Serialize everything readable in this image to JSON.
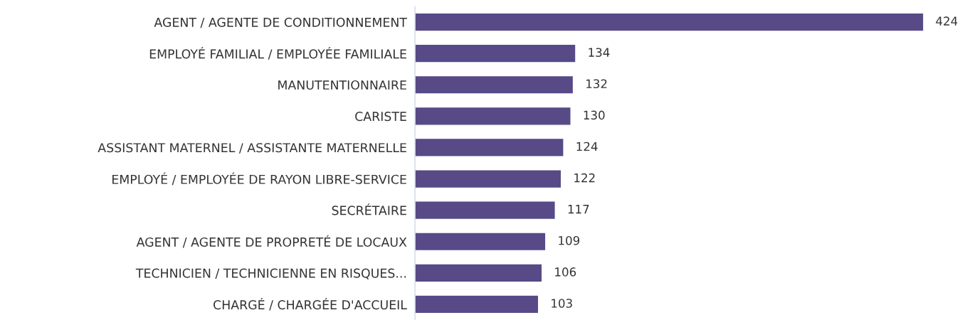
{
  "chart_data": {
    "type": "bar",
    "orientation": "horizontal",
    "categories": [
      "AGENT / AGENTE DE CONDITIONNEMENT",
      "EMPLOYÉ FAMILIAL / EMPLOYÉE FAMILIALE",
      "MANUTENTIONNAIRE",
      "CARISTE",
      "ASSISTANT MATERNEL / ASSISTANTE MATERNELLE",
      "EMPLOYÉ / EMPLOYÉE DE RAYON LIBRE-SERVICE",
      "SECRÉTAIRE",
      "AGENT / AGENTE DE PROPRETÉ DE LOCAUX",
      "TECHNICIEN / TECHNICIENNE EN RISQUES...",
      "CHARGÉ / CHARGÉE D'ACCUEIL"
    ],
    "values": [
      424,
      134,
      132,
      130,
      124,
      122,
      117,
      109,
      106,
      103
    ],
    "color": "#574a87",
    "data_labels": true,
    "grid": false,
    "legend": false
  }
}
